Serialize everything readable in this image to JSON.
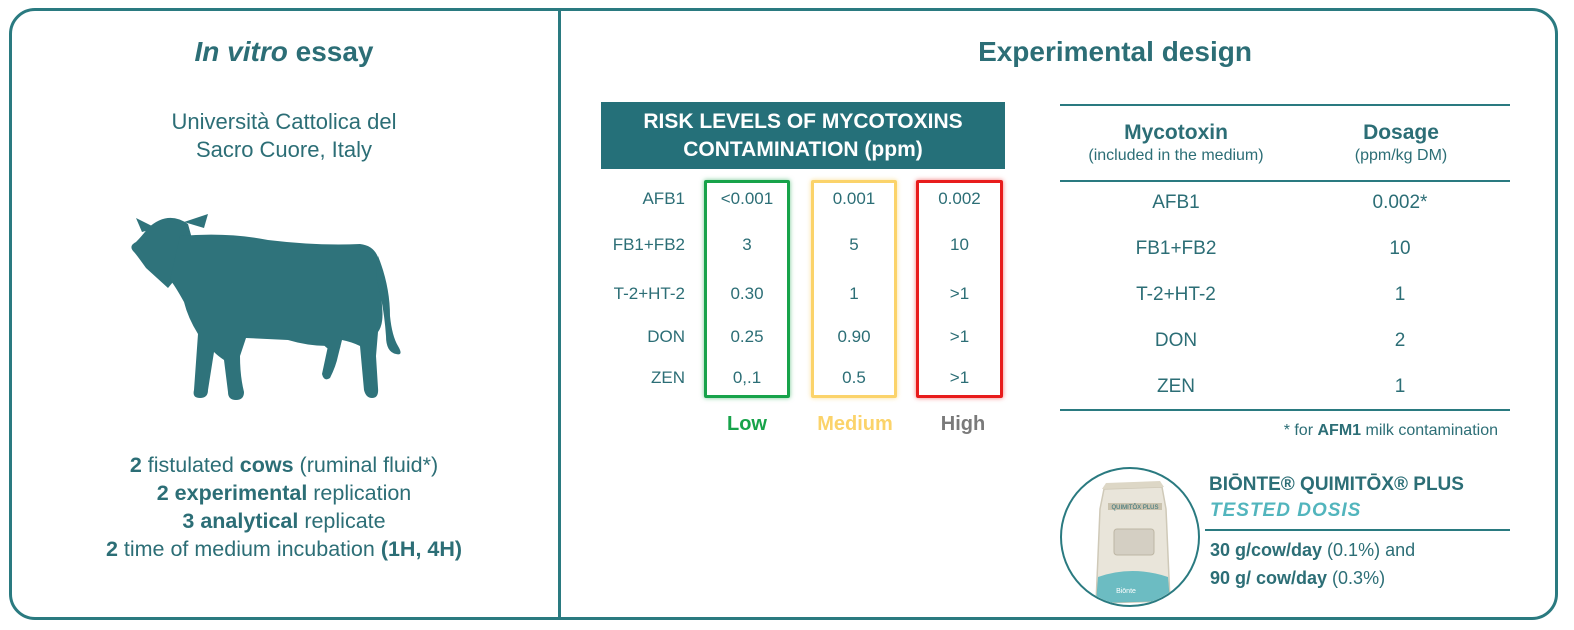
{
  "left": {
    "title_italic": "In vitro",
    "title_rest": "essay",
    "institution_line1": "Università Cattolica del",
    "institution_line2": "Sacro Cuore, Italy",
    "icon": "cow-icon",
    "facts": [
      {
        "p1": "2",
        "p2": " fistulated ",
        "p3": "cows",
        "p4": " (ruminal fluid*)"
      },
      {
        "p1": "2 experimental",
        "p2": " replication"
      },
      {
        "p1": "3 analytical",
        "p2": " replicate"
      },
      {
        "p1": "2",
        "p2": " time of medium incubation ",
        "p3": "(1H, 4H)"
      }
    ]
  },
  "right": {
    "title": "Experimental design",
    "risk_table": {
      "header_line1": "RISK LEVELS OF MYCOTOXINS",
      "header_line2": "CONTAMINATION (ppm)",
      "rows": [
        "AFB1",
        "FB1+FB2",
        "T-2+HT-2",
        "DON",
        "ZEN"
      ],
      "levels": [
        {
          "name": "Low",
          "color": "#17a34a",
          "values": [
            "<0.001",
            "3",
            "0.30",
            "0.25",
            "0,.1"
          ]
        },
        {
          "name": "Medium",
          "color": "#fbd36a",
          "values": [
            "0.001",
            "5",
            "1",
            "0.90",
            "0.5"
          ]
        },
        {
          "name": "High",
          "color": "#e81c1c",
          "label_color": "#7a7a7a",
          "values": [
            "0.002",
            "10",
            ">1",
            ">1",
            ">1"
          ]
        }
      ]
    },
    "dosage_table": {
      "col1_title": "Mycotoxin",
      "col1_sub": "(included in the medium)",
      "col2_title": "Dosage",
      "col2_sub": "(ppm/kg DM)",
      "rows": [
        {
          "mycotoxin": "AFB1",
          "dosage": "0.002*"
        },
        {
          "mycotoxin": "FB1+FB2",
          "dosage": "10"
        },
        {
          "mycotoxin": "T-2+HT-2",
          "dosage": "1"
        },
        {
          "mycotoxin": "DON",
          "dosage": "2"
        },
        {
          "mycotoxin": "ZEN",
          "dosage": "1"
        }
      ],
      "footnote_pre": "* for ",
      "footnote_bold": "AFM1",
      "footnote_post": " milk contamination"
    },
    "product": {
      "name": "BIŌNTE® QUIMITŌX® PLUS",
      "subtitle": "TESTED DOSIS",
      "dose1_bold": "30 g/cow/day",
      "dose1_rest": " (0.1%)  and",
      "dose2_bold": "90 g/ cow/day",
      "dose2_rest": " (0.3%)",
      "bag_label": "QUIMITŌX PLUS",
      "bag_brand": "Biōnte",
      "icon": "product-bag-icon"
    },
    "colors": {
      "teal": "#257079",
      "light_teal": "#52b5bd"
    }
  }
}
